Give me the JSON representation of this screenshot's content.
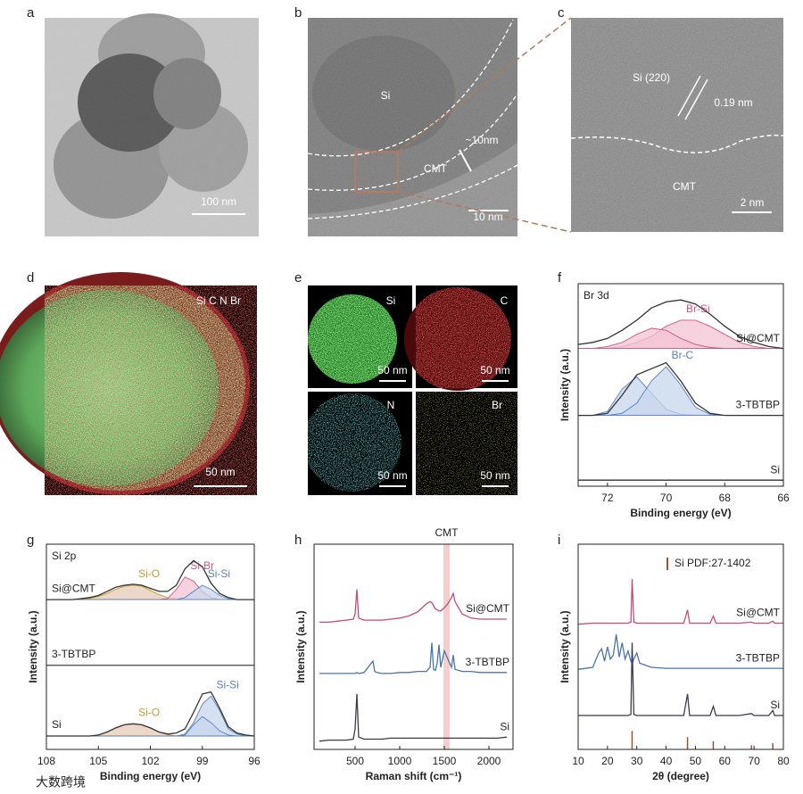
{
  "panels": [
    {
      "label": "a",
      "texts": [
        "100 nm"
      ]
    },
    {
      "label": "b",
      "texts": [
        "Si",
        "~10nm",
        "CMT",
        "10 nm"
      ]
    },
    {
      "label": "c",
      "texts": [
        "Si (220)",
        "0.19 nm",
        "CMT",
        "2 nm"
      ]
    },
    {
      "label": "d",
      "texts": [
        "Si C N Br",
        "50 nm"
      ]
    },
    {
      "label": "e",
      "texts": [
        "Si",
        "C",
        "N",
        "Br",
        "50 nm",
        "50 nm",
        "50 nm",
        "50 nm"
      ]
    }
  ],
  "watermark": "大数跨境",
  "chart_data": [
    {
      "type": "line",
      "panel_label": "f",
      "annotation": "Br 3d",
      "x_label": "Binding energy (eV)",
      "y_label": "Intensity (a.u.)",
      "xlim": [
        73,
        66
      ],
      "xticks": [
        72,
        70,
        68,
        66
      ],
      "ylim": [
        0,
        100
      ],
      "x": [
        73,
        72.5,
        72,
        71.5,
        71,
        70.5,
        70,
        69.5,
        69,
        68.5,
        68,
        67.5,
        67,
        66.5,
        66
      ],
      "series": [
        {
          "name": "Si@CMT",
          "color": "#333333",
          "values": [
            70,
            71,
            73,
            77,
            82,
            88,
            91,
            92,
            90,
            85,
            79,
            74,
            71,
            69,
            68
          ]
        },
        {
          "name": "Br-Si",
          "color": "#d0567f",
          "fill": "#f2c3d3",
          "values": [
            68,
            68,
            68,
            69,
            71,
            74,
            79,
            82,
            82,
            79,
            75,
            71,
            69,
            68,
            68
          ]
        },
        {
          "color": "#d0567f",
          "fill": "#f2c3d3",
          "values": [
            68,
            68,
            69,
            71,
            75,
            78,
            77,
            73,
            70,
            68.5,
            68,
            68,
            68,
            68,
            68
          ]
        },
        {
          "name": "3-TBTBP",
          "color": "#333333",
          "values": [
            35,
            35,
            36,
            45,
            55,
            58,
            61,
            52,
            41,
            36,
            35,
            35,
            35,
            35,
            35
          ]
        },
        {
          "color": "#5a80b8",
          "fill": "#c7d6ec",
          "values": [
            35,
            35,
            37,
            48,
            54,
            46,
            38,
            35.5,
            35,
            35,
            35,
            35,
            35,
            35,
            35
          ]
        },
        {
          "name": "Br-C",
          "color": "#5a80b8",
          "fill": "#c7d6ec",
          "values": [
            35,
            35,
            35,
            36,
            41,
            52,
            59,
            50,
            39,
            35.5,
            35,
            35,
            35,
            35,
            35
          ]
        },
        {
          "name": "Si",
          "color": "#333333",
          "values": [
            3,
            3,
            3,
            3,
            3,
            3,
            3,
            3,
            3,
            3,
            3,
            3,
            3,
            3,
            3
          ]
        }
      ]
    },
    {
      "type": "line",
      "panel_label": "g",
      "annotation": "Si 2p",
      "x_label": "Binding energy (eV)",
      "y_label": "Intensity (a.u.)",
      "xlim": [
        108,
        96
      ],
      "xticks": [
        108,
        105,
        102,
        99,
        96
      ],
      "ylim": [
        0,
        100
      ],
      "x": [
        108,
        107.5,
        107,
        106.5,
        106,
        105.5,
        105,
        104.5,
        104,
        103.5,
        103,
        102.5,
        102,
        101.5,
        101,
        100.5,
        100,
        99.5,
        99,
        98.5,
        98,
        97.5,
        97,
        96.5,
        96
      ],
      "series": [
        {
          "name": "Si@CMT",
          "color": "#333333",
          "values": [
            73,
            73,
            73,
            73,
            73.5,
            74,
            75,
            77,
            79,
            80,
            80.5,
            80,
            78.5,
            77,
            77,
            80,
            88,
            92,
            89,
            81,
            76,
            74,
            73,
            73,
            73
          ]
        },
        {
          "name": "Si-O",
          "color": "#c49a2c",
          "fill": "#e4cbb6",
          "values": [
            73,
            73,
            73,
            73,
            73.2,
            73.6,
            74.5,
            76,
            78,
            79.5,
            80,
            79.5,
            77.5,
            75.5,
            74,
            73.4,
            73,
            73,
            73,
            73,
            73,
            73,
            73,
            73,
            73
          ]
        },
        {
          "name": "Si-Br",
          "color": "#d0567f",
          "fill": "#f2c3d3",
          "values": [
            73,
            73,
            73,
            73,
            73,
            73,
            73,
            73,
            73,
            73,
            73,
            73,
            73,
            73,
            73.5,
            78,
            84,
            82,
            77,
            74,
            73,
            73,
            73,
            73,
            73
          ]
        },
        {
          "name": "Si-Si",
          "color": "#5a80b8",
          "fill": "#c7d6ec",
          "values": [
            73,
            73,
            73,
            73,
            73,
            73,
            73,
            73,
            73,
            73,
            73,
            73,
            73,
            73,
            73,
            73,
            74,
            77,
            80,
            78,
            75,
            73.5,
            73,
            73,
            73
          ]
        },
        {
          "name": "3-TBTBP",
          "color": "#555555",
          "values": [
            41,
            41,
            41,
            41,
            41,
            41,
            41,
            41,
            41,
            41,
            41,
            41,
            41,
            41,
            41,
            41,
            41,
            41,
            41,
            41,
            41,
            41,
            41,
            41,
            41
          ]
        },
        {
          "name": "Si",
          "color": "#333333",
          "values": [
            6.5,
            6.5,
            6.5,
            6.5,
            6.5,
            6.5,
            7,
            8.5,
            10.5,
            12,
            12.5,
            12,
            10.5,
            8.5,
            7.5,
            8,
            10,
            18,
            27,
            28,
            20,
            11,
            8,
            7,
            6.5
          ]
        },
        {
          "name": "Si-O",
          "color": "#c49a2c",
          "fill": "#e4cbb6",
          "values": [
            6.5,
            6.5,
            6.5,
            6.5,
            6.5,
            6.5,
            7,
            8.5,
            10.5,
            12,
            12.5,
            12,
            10.5,
            8.5,
            7.2,
            6.6,
            6.5,
            6.5,
            6.5,
            6.5,
            6.5,
            6.5,
            6.5,
            6.5,
            6.5
          ]
        },
        {
          "name": "Si-Si",
          "color": "#5a80b8",
          "fill": "#c7d6ec",
          "values": [
            6.5,
            6.5,
            6.5,
            6.5,
            6.5,
            6.5,
            6.5,
            6.5,
            6.5,
            6.5,
            6.5,
            6.5,
            6.5,
            6.5,
            6.5,
            6.5,
            7.5,
            13,
            22,
            26,
            19,
            10,
            7.5,
            6.6,
            6.5
          ]
        },
        {
          "color": "#5a80b8",
          "fill": "#c7d6ec",
          "values": [
            6.5,
            6.5,
            6.5,
            6.5,
            6.5,
            6.5,
            6.5,
            6.5,
            6.5,
            6.5,
            6.5,
            6.5,
            6.5,
            6.5,
            6.5,
            6.5,
            7,
            12,
            16,
            13,
            9,
            7,
            6.5,
            6.5,
            6.5
          ]
        }
      ]
    },
    {
      "type": "line",
      "panel_label": "h",
      "x_label": "Raman shift (cm⁻¹)",
      "y_label": "Intensity (a.u.)",
      "xlim": [
        40,
        2270
      ],
      "xticks": [
        500,
        1000,
        1500,
        2000
      ],
      "ylim": [
        0,
        100
      ],
      "highlight": {
        "label": "CMT",
        "range": [
          1490,
          1560
        ],
        "color": "#f4b8b8"
      },
      "x": [
        100,
        200,
        300,
        400,
        480,
        500,
        520,
        540,
        600,
        700,
        720,
        740,
        800,
        900,
        1000,
        1100,
        1200,
        1300,
        1340,
        1360,
        1380,
        1400,
        1420,
        1440,
        1460,
        1500,
        1540,
        1580,
        1600,
        1620,
        1700,
        1800,
        1900,
        2000,
        2100,
        2200
      ],
      "series": [
        {
          "name": "Si@CMT",
          "color": "#c24d7a",
          "values": [
            62,
            62,
            62.5,
            63,
            63.5,
            66,
            78,
            64,
            63,
            63,
            63,
            63,
            63,
            63.5,
            64,
            65,
            67,
            71,
            72,
            71.5,
            70,
            68.5,
            68,
            67.5,
            67.5,
            69,
            71,
            74,
            76,
            72,
            66,
            64,
            63.5,
            63.5,
            63.5,
            63.5
          ]
        },
        {
          "name": "3-TBTBP",
          "color": "#4a74ad",
          "values": [
            37,
            37,
            37,
            37,
            37,
            37,
            37.5,
            37,
            37.5,
            43,
            38,
            37.5,
            37,
            37,
            37.5,
            37.5,
            38,
            38,
            40,
            52,
            39,
            38.5,
            42,
            51,
            40,
            48,
            44,
            40,
            46,
            39,
            38,
            38,
            37.5,
            37.5,
            37.5,
            37.5
          ]
        },
        {
          "name": "Si",
          "color": "#3b3b4a",
          "values": [
            4,
            4.5,
            4.5,
            4.5,
            5,
            10,
            27,
            6,
            5,
            5,
            5,
            5,
            5,
            5.5,
            5.5,
            5.5,
            5.5,
            5.5,
            5.5,
            5.5,
            5.5,
            5.5,
            5.5,
            5.5,
            5.5,
            5.5,
            5.5,
            5.5,
            5.5,
            5.5,
            5.5,
            5.5,
            5.5,
            5.5,
            5.5,
            6
          ]
        }
      ]
    },
    {
      "type": "line",
      "panel_label": "i",
      "x_label": "2θ (degree)",
      "y_label": "Intensity (a.u.)",
      "xlim": [
        10,
        80
      ],
      "xticks": [
        10,
        20,
        30,
        40,
        50,
        60,
        70,
        80
      ],
      "ylim": [
        0,
        100
      ],
      "reference": {
        "name": "Si PDF:27-1402",
        "color": "#a0522d",
        "x": [
          28.4,
          47.3,
          56.1,
          69.1,
          76.4
        ],
        "values": [
          9,
          6,
          4,
          2,
          3
        ]
      },
      "x": [
        10,
        15,
        17,
        18,
        19,
        20,
        21,
        22,
        23,
        24,
        25,
        26,
        27,
        28,
        28.4,
        29,
        30,
        31,
        35,
        40,
        46,
        47.3,
        48,
        50,
        55,
        56.1,
        57,
        65,
        69.1,
        70,
        75,
        76.4,
        77,
        80
      ],
      "series": [
        {
          "name": "Si@CMT",
          "color": "#c24d7a",
          "values": [
            61,
            61.5,
            61.5,
            61.5,
            61.5,
            61.5,
            61.5,
            61.5,
            61.5,
            61.5,
            61.5,
            61.5,
            61.5,
            62,
            83,
            62,
            61.5,
            61.5,
            61.5,
            61.5,
            61.5,
            68,
            61.5,
            61.5,
            61.5,
            65,
            61.5,
            61.5,
            62,
            61.5,
            61.5,
            62.5,
            61.5,
            61.5
          ]
        },
        {
          "name": "3-TBTBP",
          "color": "#4a74ad",
          "values": [
            39,
            40,
            47,
            49,
            43,
            50,
            44,
            46,
            56,
            45,
            52,
            44,
            48,
            43,
            42,
            44,
            47,
            42,
            40,
            39.5,
            39.5,
            39.5,
            39.5,
            39.5,
            39.5,
            39.5,
            39.5,
            39.5,
            39.5,
            39.5,
            39.5,
            39.5,
            39.5,
            39.5
          ]
        },
        {
          "name": "Si",
          "color": "#3b3b4a",
          "values": [
            16.5,
            16.5,
            16.5,
            16.5,
            16.5,
            16.5,
            16.5,
            16.5,
            16.5,
            16.5,
            16.5,
            16.5,
            16.5,
            17,
            52,
            17,
            16.5,
            16.5,
            16.5,
            16.5,
            16.5,
            27,
            16.5,
            16.5,
            16.5,
            21,
            16.5,
            16.5,
            17.5,
            16.5,
            16.5,
            19,
            16.5,
            16.5
          ]
        }
      ]
    }
  ]
}
